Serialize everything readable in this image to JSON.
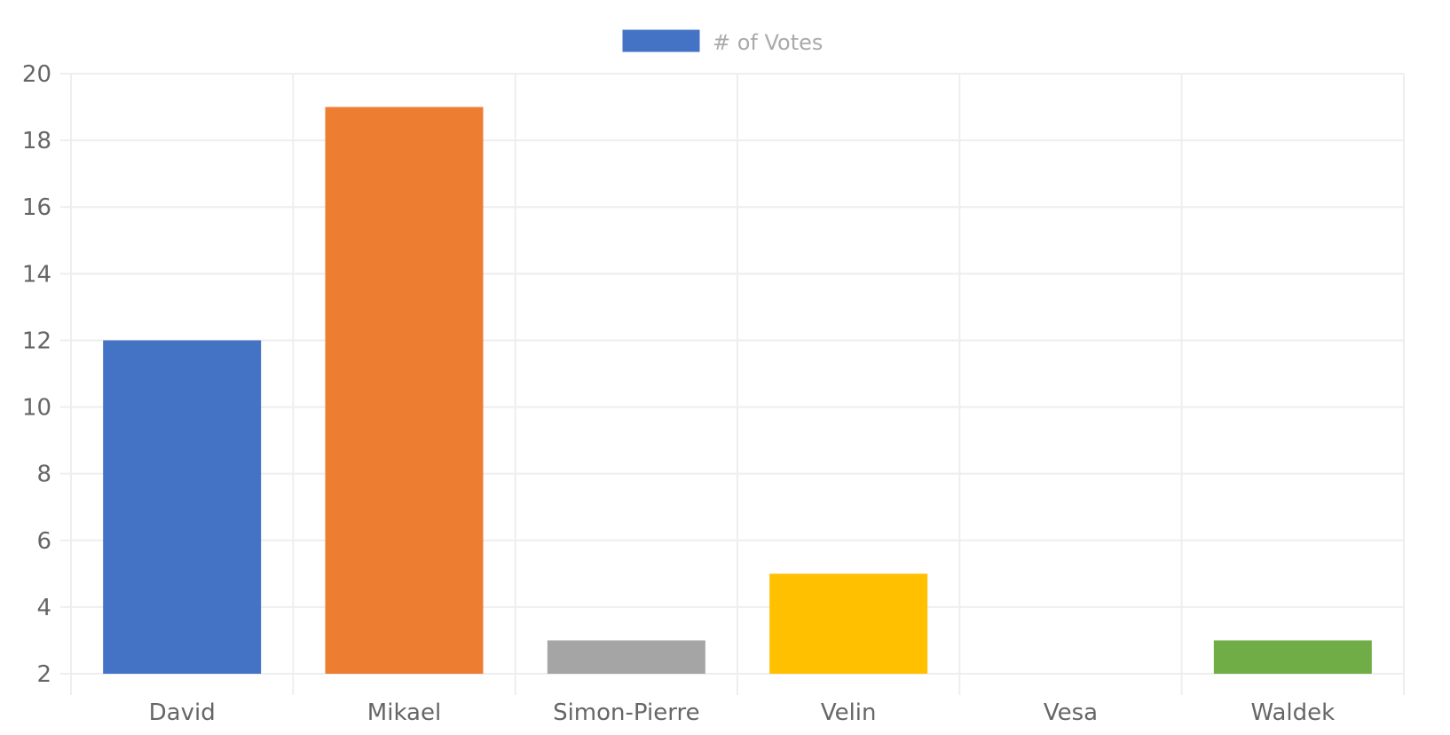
{
  "chart_data": {
    "type": "bar",
    "categories": [
      "David",
      "Mikael",
      "Simon-Pierre",
      "Velin",
      "Vesa",
      "Waldek"
    ],
    "series": [
      {
        "name": "# of Votes",
        "values": [
          12,
          19,
          3,
          5,
          2,
          3
        ],
        "colors": [
          "#4472c4",
          "#ed7d31",
          "#a5a5a5",
          "#ffc000",
          "#5b9bd5",
          "#70ad47"
        ]
      }
    ],
    "legend": {
      "label": "# of Votes",
      "swatch_color": "#4472c4",
      "position": "top-center"
    },
    "yticks": [
      "2",
      "4",
      "6",
      "8",
      "10",
      "12",
      "14",
      "16",
      "18",
      "20"
    ],
    "ylim": [
      2,
      20
    ],
    "grid": true,
    "title": "",
    "xlabel": "",
    "ylabel": ""
  }
}
